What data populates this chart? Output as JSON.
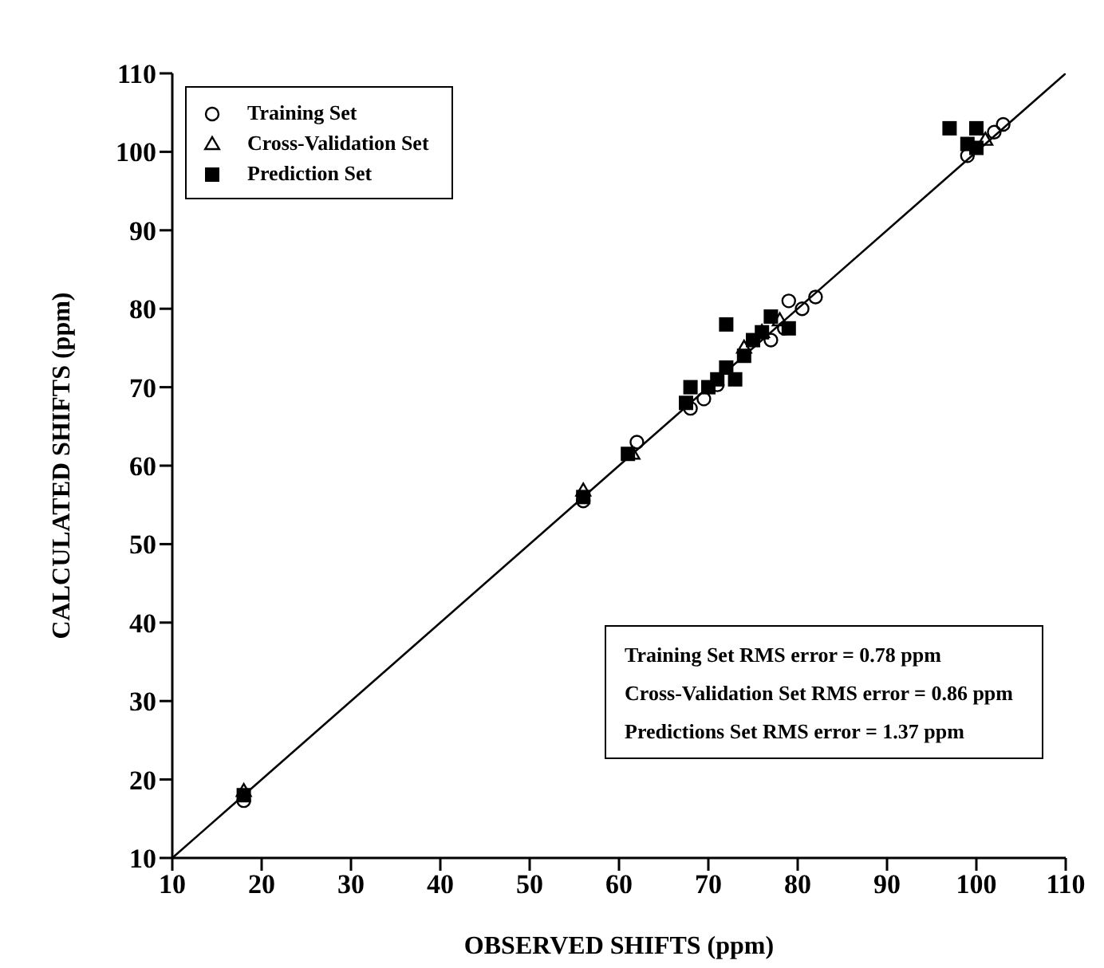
{
  "chart_data": {
    "type": "scatter",
    "xlabel": "OBSERVED SHIFTS (ppm)",
    "ylabel": "CALCULATED SHIFTS (ppm)",
    "xlim": [
      10,
      110
    ],
    "ylim": [
      10,
      110
    ],
    "xticks": [
      10,
      20,
      30,
      40,
      50,
      60,
      70,
      80,
      90,
      100,
      110
    ],
    "yticks": [
      10,
      20,
      30,
      40,
      50,
      60,
      70,
      80,
      90,
      100,
      110
    ],
    "grid": false,
    "legend": "top left",
    "series": [
      {
        "name": "Training Set",
        "color": "#000000",
        "marker": "circle",
        "x": [
          18,
          56,
          62,
          68,
          69.5,
          71,
          77,
          78.5,
          79,
          80.5,
          82,
          99,
          102,
          103
        ],
        "values": [
          17.3,
          55.5,
          63,
          67.3,
          68.5,
          70.3,
          76,
          77.5,
          81,
          80,
          81.5,
          99.5,
          102.5,
          103.5
        ]
      },
      {
        "name": "Cross-Validation Set",
        "color": "#000000",
        "marker": "triangle",
        "x": [
          18,
          56,
          61.5,
          74,
          76,
          78,
          101
        ],
        "values": [
          18.5,
          56.8,
          61.5,
          75,
          77,
          78.5,
          101.5
        ]
      },
      {
        "name": "Prediction Set",
        "color": "#000000",
        "marker": "square",
        "x": [
          18,
          56,
          61,
          67.5,
          68,
          70,
          71,
          72,
          72,
          73,
          74,
          75,
          76,
          77,
          79,
          97,
          99,
          100,
          100
        ],
        "values": [
          18,
          56,
          61.5,
          68,
          70,
          70,
          71,
          72.5,
          78,
          71,
          74,
          76,
          77,
          79,
          77.5,
          103,
          101,
          100.5,
          103
        ]
      },
      {
        "type": "line",
        "color": "#000000",
        "marker": "none",
        "x": [
          10,
          110
        ],
        "values": [
          10,
          110
        ]
      }
    ],
    "annotations": [
      "Training Set RMS error = 0.78 ppm",
      "Cross-Validation Set RMS error = 0.86 ppm",
      "Predictions Set RMS error = 1.37 ppm"
    ]
  }
}
